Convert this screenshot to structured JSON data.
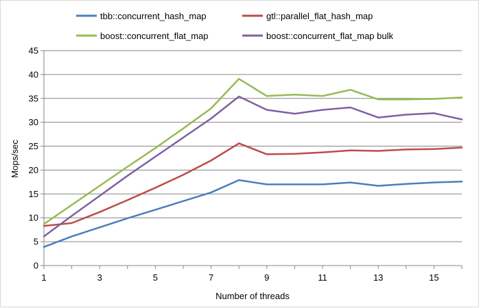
{
  "chart_data": {
    "type": "line",
    "title": "",
    "xlabel": "Number of threads",
    "ylabel": "Mops/sec",
    "x": [
      1,
      2,
      3,
      4,
      5,
      6,
      7,
      8,
      9,
      10,
      11,
      12,
      13,
      14,
      15,
      16
    ],
    "xlim": [
      1,
      16
    ],
    "ylim": [
      0,
      45
    ],
    "x_ticks": [
      1,
      3,
      5,
      7,
      9,
      11,
      13,
      15
    ],
    "y_ticks": [
      0,
      5,
      10,
      15,
      20,
      25,
      30,
      35,
      40,
      45
    ],
    "grid": "horizontal",
    "legend_position": "top",
    "series": [
      {
        "name": "tbb::concurrent_hash_map",
        "color": "#4a7ebb",
        "values": [
          3.9,
          6.1,
          8.0,
          9.9,
          11.7,
          13.5,
          15.3,
          17.9,
          17.0,
          17.0,
          17.0,
          17.4,
          16.7,
          17.1,
          17.4,
          17.6
        ]
      },
      {
        "name": "gtl::parallel_flat_hash_map",
        "color": "#be4b48",
        "values": [
          8.3,
          8.9,
          11.2,
          13.7,
          16.3,
          19.0,
          22.0,
          25.6,
          23.3,
          23.4,
          23.7,
          24.1,
          24.0,
          24.3,
          24.4,
          24.7
        ]
      },
      {
        "name": "boost::concurrent_flat_map",
        "color": "#98b954",
        "values": [
          8.7,
          12.7,
          16.7,
          20.7,
          24.6,
          28.7,
          32.9,
          39.1,
          35.5,
          35.8,
          35.5,
          36.8,
          34.8,
          34.8,
          34.9,
          35.2
        ]
      },
      {
        "name": "boost::concurrent_flat_map bulk",
        "color": "#7d60a0",
        "values": [
          6.1,
          10.4,
          14.6,
          18.8,
          22.8,
          26.8,
          30.8,
          35.4,
          32.6,
          31.8,
          32.6,
          33.1,
          31.0,
          31.6,
          31.9,
          30.6
        ]
      }
    ]
  }
}
